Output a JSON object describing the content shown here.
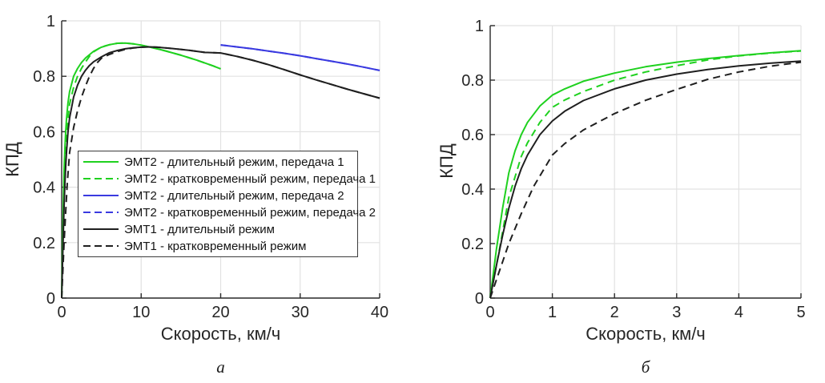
{
  "colors": {
    "green": "#1fd11f",
    "blue": "#3a3ae0",
    "black": "#1f1f1f",
    "grid": "#e2e2e2",
    "axis": "#2b2b2b",
    "text": "#262626",
    "legend_border": "#3c3c3c",
    "background": "#ffffff"
  },
  "chart_data": [
    {
      "id": "a",
      "type": "line",
      "sublabel": "а",
      "xlabel": "Скорость, км/ч",
      "ylabel": "КПД",
      "xlim": [
        0,
        40
      ],
      "ylim": [
        0,
        1
      ],
      "xticks": [
        0,
        10,
        20,
        30,
        40
      ],
      "yticks": [
        0,
        0.2,
        0.4,
        0.6,
        0.8,
        1
      ],
      "grid": true,
      "legend": {
        "visible": true,
        "location": "inside middle-left"
      },
      "series": [
        {
          "name": "ЭМТ2 - длительный режим, передача 1",
          "color": "green",
          "dash": false,
          "points": [
            [
              0,
              0
            ],
            [
              0.1,
              0.18
            ],
            [
              0.2,
              0.33
            ],
            [
              0.3,
              0.46
            ],
            [
              0.4,
              0.54
            ],
            [
              0.5,
              0.6
            ],
            [
              0.6,
              0.645
            ],
            [
              0.8,
              0.705
            ],
            [
              1,
              0.745
            ],
            [
              1.5,
              0.8
            ],
            [
              2,
              0.828
            ],
            [
              2.5,
              0.85
            ],
            [
              3,
              0.866
            ],
            [
              4,
              0.89
            ],
            [
              5,
              0.905
            ],
            [
              6,
              0.914
            ],
            [
              7,
              0.919
            ],
            [
              8,
              0.92
            ],
            [
              9,
              0.917
            ],
            [
              10,
              0.912
            ],
            [
              11,
              0.906
            ],
            [
              12,
              0.899
            ],
            [
              13,
              0.892
            ],
            [
              14,
              0.884
            ],
            [
              15,
              0.876
            ],
            [
              16,
              0.867
            ],
            [
              17,
              0.858
            ],
            [
              18,
              0.848
            ],
            [
              19,
              0.838
            ],
            [
              20,
              0.827
            ]
          ]
        },
        {
          "name": "ЭМТ2 - кратковременный режим, передача 1",
          "color": "green",
          "dash": true,
          "points": [
            [
              0,
              0
            ],
            [
              0.15,
              0.18
            ],
            [
              0.3,
              0.37
            ],
            [
              0.5,
              0.52
            ],
            [
              0.6,
              0.57
            ],
            [
              0.8,
              0.645
            ],
            [
              1,
              0.7
            ],
            [
              1.5,
              0.76
            ],
            [
              2,
              0.8
            ],
            [
              2.5,
              0.829
            ],
            [
              3,
              0.852
            ],
            [
              3.5,
              0.872
            ],
            [
              4,
              0.888
            ],
            [
              5,
              0.906
            ],
            [
              6,
              0.914
            ],
            [
              7,
              0.919
            ],
            [
              8,
              0.92
            ],
            [
              9,
              0.917
            ],
            [
              10,
              0.912
            ],
            [
              11,
              0.906
            ],
            [
              12,
              0.899
            ],
            [
              13,
              0.892
            ],
            [
              14,
              0.884
            ],
            [
              15,
              0.876
            ],
            [
              16,
              0.867
            ],
            [
              17,
              0.858
            ],
            [
              18,
              0.848
            ],
            [
              19,
              0.838
            ],
            [
              20,
              0.827
            ]
          ]
        },
        {
          "name": "ЭМТ2 - длительный режим, передача 2",
          "color": "blue",
          "dash": false,
          "points": [
            [
              20,
              0.913
            ],
            [
              22,
              0.906
            ],
            [
              24,
              0.899
            ],
            [
              26,
              0.891
            ],
            [
              28,
              0.883
            ],
            [
              30,
              0.874
            ],
            [
              32,
              0.864
            ],
            [
              34,
              0.854
            ],
            [
              36,
              0.844
            ],
            [
              38,
              0.833
            ],
            [
              40,
              0.821
            ]
          ]
        },
        {
          "name": "ЭМТ2 - кратковременный режим, передача 2",
          "color": "blue",
          "dash": true,
          "points": [
            [
              20,
              0.913
            ],
            [
              22,
              0.906
            ],
            [
              24,
              0.899
            ],
            [
              26,
              0.891
            ],
            [
              28,
              0.883
            ],
            [
              30,
              0.874
            ],
            [
              32,
              0.864
            ],
            [
              34,
              0.854
            ],
            [
              36,
              0.844
            ],
            [
              38,
              0.833
            ],
            [
              40,
              0.821
            ]
          ]
        },
        {
          "name": "ЭМТ1 - длительный режим",
          "color": "black",
          "dash": false,
          "points": [
            [
              0,
              0
            ],
            [
              0.1,
              0.12
            ],
            [
              0.2,
              0.23
            ],
            [
              0.3,
              0.33
            ],
            [
              0.4,
              0.41
            ],
            [
              0.5,
              0.475
            ],
            [
              0.6,
              0.525
            ],
            [
              0.8,
              0.6
            ],
            [
              1,
              0.65
            ],
            [
              1.5,
              0.725
            ],
            [
              2,
              0.768
            ],
            [
              2.5,
              0.8
            ],
            [
              3,
              0.822
            ],
            [
              3.5,
              0.839
            ],
            [
              4,
              0.852
            ],
            [
              5,
              0.87
            ],
            [
              6,
              0.885
            ],
            [
              7,
              0.893
            ],
            [
              8,
              0.899
            ],
            [
              9,
              0.903
            ],
            [
              10,
              0.905
            ],
            [
              11,
              0.906
            ],
            [
              12,
              0.905
            ],
            [
              14,
              0.9
            ],
            [
              16,
              0.894
            ],
            [
              18,
              0.886
            ],
            [
              20,
              0.884
            ],
            [
              22,
              0.872
            ],
            [
              24,
              0.858
            ],
            [
              26,
              0.842
            ],
            [
              28,
              0.824
            ],
            [
              30,
              0.805
            ],
            [
              32,
              0.787
            ],
            [
              34,
              0.77
            ],
            [
              36,
              0.753
            ],
            [
              38,
              0.737
            ],
            [
              40,
              0.721
            ]
          ]
        },
        {
          "name": "ЭМТ1 - кратковременный режим",
          "color": "black",
          "dash": true,
          "points": [
            [
              0,
              0
            ],
            [
              0.15,
              0.1
            ],
            [
              0.3,
              0.2
            ],
            [
              0.5,
              0.31
            ],
            [
              0.7,
              0.41
            ],
            [
              1,
              0.525
            ],
            [
              1.5,
              0.615
            ],
            [
              2,
              0.675
            ],
            [
              2.5,
              0.725
            ],
            [
              3,
              0.765
            ],
            [
              3.5,
              0.8
            ],
            [
              4,
              0.828
            ],
            [
              4.5,
              0.85
            ],
            [
              5,
              0.865
            ],
            [
              6,
              0.879
            ],
            [
              7,
              0.889
            ],
            [
              8,
              0.897
            ],
            [
              9,
              0.902
            ],
            [
              10,
              0.905
            ],
            [
              11,
              0.906
            ],
            [
              12,
              0.905
            ],
            [
              14,
              0.9
            ],
            [
              16,
              0.894
            ],
            [
              18,
              0.886
            ],
            [
              20,
              0.884
            ],
            [
              22,
              0.872
            ],
            [
              24,
              0.858
            ],
            [
              26,
              0.842
            ],
            [
              28,
              0.824
            ],
            [
              30,
              0.805
            ],
            [
              32,
              0.787
            ],
            [
              34,
              0.77
            ],
            [
              36,
              0.753
            ],
            [
              38,
              0.737
            ],
            [
              40,
              0.721
            ]
          ]
        }
      ]
    },
    {
      "id": "b",
      "type": "line",
      "sublabel": "б",
      "xlabel": "Скорость, км/ч",
      "ylabel": "КПД",
      "xlim": [
        0,
        5
      ],
      "ylim": [
        0,
        1
      ],
      "xticks": [
        0,
        1,
        2,
        3,
        4,
        5
      ],
      "yticks": [
        0,
        0.2,
        0.4,
        0.6,
        0.8,
        1
      ],
      "grid": true,
      "legend": {
        "visible": false
      },
      "series": [
        {
          "name": "ЭМТ2 - длительный режим, передача 1",
          "color": "green",
          "dash": false,
          "points": [
            [
              0,
              0
            ],
            [
              0.1,
              0.18
            ],
            [
              0.2,
              0.33
            ],
            [
              0.3,
              0.46
            ],
            [
              0.4,
              0.54
            ],
            [
              0.5,
              0.6
            ],
            [
              0.6,
              0.645
            ],
            [
              0.8,
              0.705
            ],
            [
              1,
              0.745
            ],
            [
              1.2,
              0.768
            ],
            [
              1.5,
              0.796
            ],
            [
              1.8,
              0.814
            ],
            [
              2,
              0.826
            ],
            [
              2.5,
              0.849
            ],
            [
              3,
              0.866
            ],
            [
              3.5,
              0.879
            ],
            [
              4,
              0.89
            ],
            [
              4.5,
              0.9
            ],
            [
              5,
              0.908
            ]
          ]
        },
        {
          "name": "ЭМТ2 - кратковременный режим, передача 1",
          "color": "green",
          "dash": true,
          "points": [
            [
              0,
              0
            ],
            [
              0.15,
              0.18
            ],
            [
              0.3,
              0.37
            ],
            [
              0.5,
              0.52
            ],
            [
              0.6,
              0.57
            ],
            [
              0.8,
              0.645
            ],
            [
              1,
              0.7
            ],
            [
              1.2,
              0.727
            ],
            [
              1.5,
              0.758
            ],
            [
              2,
              0.8
            ],
            [
              2.5,
              0.83
            ],
            [
              3,
              0.853
            ],
            [
              3.5,
              0.874
            ],
            [
              4,
              0.889
            ],
            [
              4.5,
              0.899
            ],
            [
              5,
              0.907
            ]
          ]
        },
        {
          "name": "ЭМТ1 - длительный режим",
          "color": "black",
          "dash": false,
          "points": [
            [
              0,
              0
            ],
            [
              0.1,
              0.12
            ],
            [
              0.2,
              0.23
            ],
            [
              0.3,
              0.33
            ],
            [
              0.4,
              0.41
            ],
            [
              0.5,
              0.475
            ],
            [
              0.6,
              0.525
            ],
            [
              0.8,
              0.6
            ],
            [
              1,
              0.65
            ],
            [
              1.2,
              0.686
            ],
            [
              1.5,
              0.725
            ],
            [
              2,
              0.768
            ],
            [
              2.5,
              0.8
            ],
            [
              3,
              0.822
            ],
            [
              3.5,
              0.839
            ],
            [
              4,
              0.852
            ],
            [
              4.5,
              0.862
            ],
            [
              5,
              0.87
            ]
          ]
        },
        {
          "name": "ЭМТ1 - кратковременный режим",
          "color": "black",
          "dash": true,
          "points": [
            [
              0,
              0
            ],
            [
              0.15,
              0.1
            ],
            [
              0.3,
              0.2
            ],
            [
              0.5,
              0.31
            ],
            [
              0.7,
              0.41
            ],
            [
              1,
              0.525
            ],
            [
              1.2,
              0.567
            ],
            [
              1.5,
              0.617
            ],
            [
              2,
              0.677
            ],
            [
              2.5,
              0.726
            ],
            [
              3,
              0.766
            ],
            [
              3.5,
              0.803
            ],
            [
              4,
              0.83
            ],
            [
              4.5,
              0.851
            ],
            [
              5,
              0.866
            ]
          ]
        }
      ]
    }
  ]
}
